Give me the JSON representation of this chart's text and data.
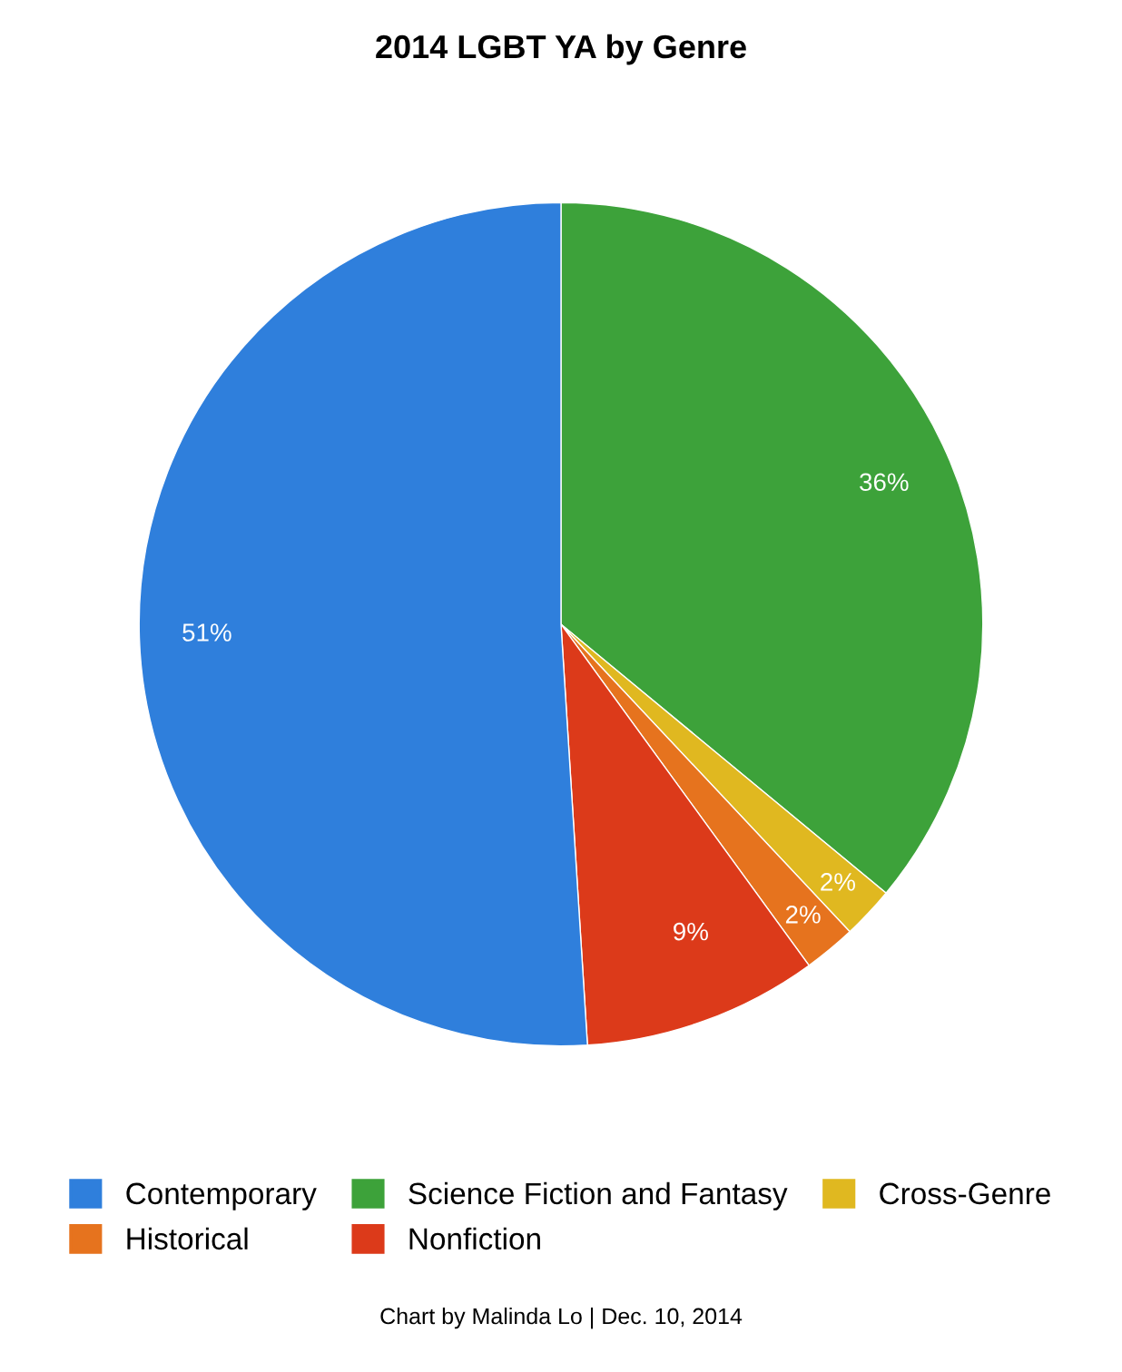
{
  "chart_data": {
    "type": "pie",
    "title": "2014 LGBT YA by Genre",
    "categories": [
      "Contemporary",
      "Science Fiction and Fantasy",
      "Cross-Genre",
      "Historical",
      "Nonfiction"
    ],
    "values": [
      51,
      36,
      2,
      2,
      9
    ],
    "value_labels": [
      "51%",
      "36%",
      "2%",
      "2%",
      "9%"
    ],
    "colors": [
      "#2f7fdc",
      "#3da23a",
      "#e0b820",
      "#e6731e",
      "#dc3a1a"
    ],
    "legend": "bottom",
    "annotations": [
      "Chart by Malinda Lo | Dec. 10, 2014"
    ]
  }
}
